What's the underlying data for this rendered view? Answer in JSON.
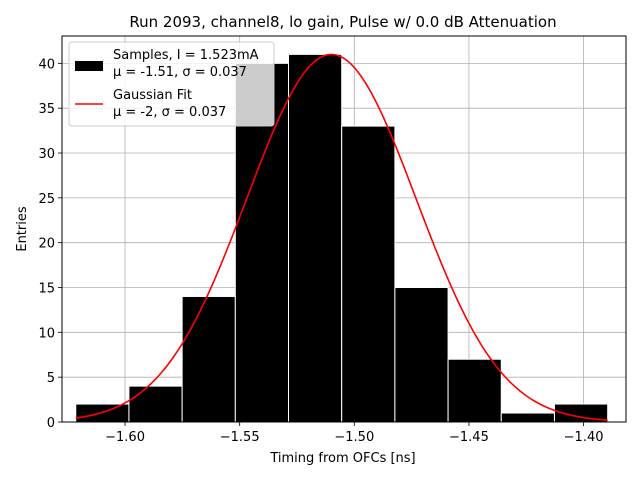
{
  "chart_data": {
    "type": "bar",
    "title": "Run 2093, channel8, lo gain, Pulse w/ 0.0 dB Attenuation",
    "xlabel": "Timing from OFCs [ns]",
    "ylabel": "Entries",
    "xlim": [
      -1.6275,
      -1.3815
    ],
    "ylim": [
      0,
      43.05
    ],
    "xticks": [
      -1.6,
      -1.55,
      -1.5,
      -1.45,
      -1.4
    ],
    "xtick_labels": [
      "−1.60",
      "−1.55",
      "−1.50",
      "−1.45",
      "−1.40"
    ],
    "yticks": [
      0,
      5,
      10,
      15,
      20,
      25,
      30,
      35,
      40
    ],
    "ytick_labels": [
      "0",
      "5",
      "10",
      "15",
      "20",
      "25",
      "30",
      "35",
      "40"
    ],
    "grid": true,
    "histogram": {
      "name": "Samples",
      "bin_edges": [
        -1.6215,
        -1.5983,
        -1.5751,
        -1.5519,
        -1.5287,
        -1.5055,
        -1.4823,
        -1.4591,
        -1.4359,
        -1.4127,
        -1.3895
      ],
      "counts": [
        2,
        4,
        14,
        40,
        41,
        33,
        15,
        7,
        1,
        2
      ],
      "color": "#000000",
      "edge_color": "#ffffff"
    },
    "fit": {
      "name": "Gaussian Fit",
      "model": "gaussian",
      "mean": -1.51,
      "sigma": 0.037,
      "amplitude": 41,
      "x_range": [
        -1.6215,
        -1.3895
      ],
      "color": "#ff0000"
    },
    "legend": {
      "position": "top-left",
      "entries": [
        {
          "label_line1": "Samples, I = 1.523mA",
          "label_line2": "μ = -1.51, σ = 0.037",
          "marker": "patch",
          "color": "#000000"
        },
        {
          "label_line1": "Gaussian Fit",
          "label_line2": "μ = -2, σ = 0.037",
          "marker": "line",
          "color": "#ff0000"
        }
      ]
    }
  }
}
